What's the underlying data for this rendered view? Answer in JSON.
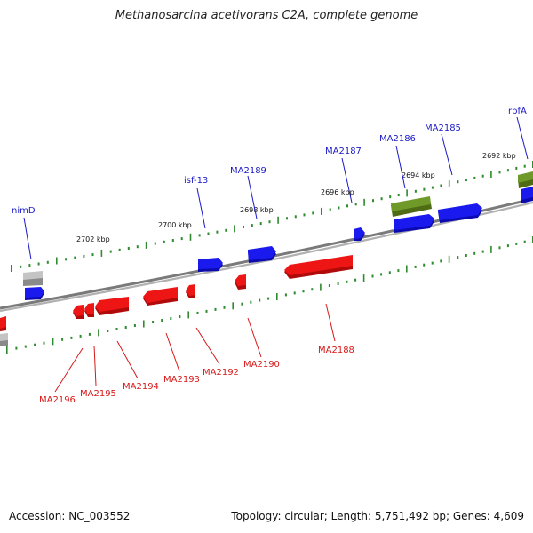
{
  "title": "Methanosarcina acetivorans C2A, complete genome",
  "footer": {
    "accession": "Accession: NC_003552",
    "summary": "Topology: circular; Length: 5,751,492 bp; Genes: 4,609"
  },
  "colors": {
    "forward_gene": "#1111dd",
    "reverse_gene": "#ee1111",
    "forward_label": "#1a1ac8",
    "reverse_label": "#d81818",
    "rna_gene": "#6b8e23",
    "pseudo_gene": "#a9a9a9",
    "backbone": "#808080",
    "tick": "#2e8b2e"
  },
  "kbp_labels": [
    "2702 kbp",
    "2700 kbp",
    "2698 kbp",
    "2696 kbp",
    "2694 kbp",
    "2692 kbp"
  ],
  "forward_gene_labels": [
    "nimD",
    "isf-13",
    "MA2189",
    "MA2187",
    "MA2186",
    "MA2185",
    "rbfA"
  ],
  "reverse_gene_labels": [
    "MA2196",
    "MA2195",
    "MA2194",
    "MA2193",
    "MA2192",
    "MA2190",
    "MA2188"
  ]
}
